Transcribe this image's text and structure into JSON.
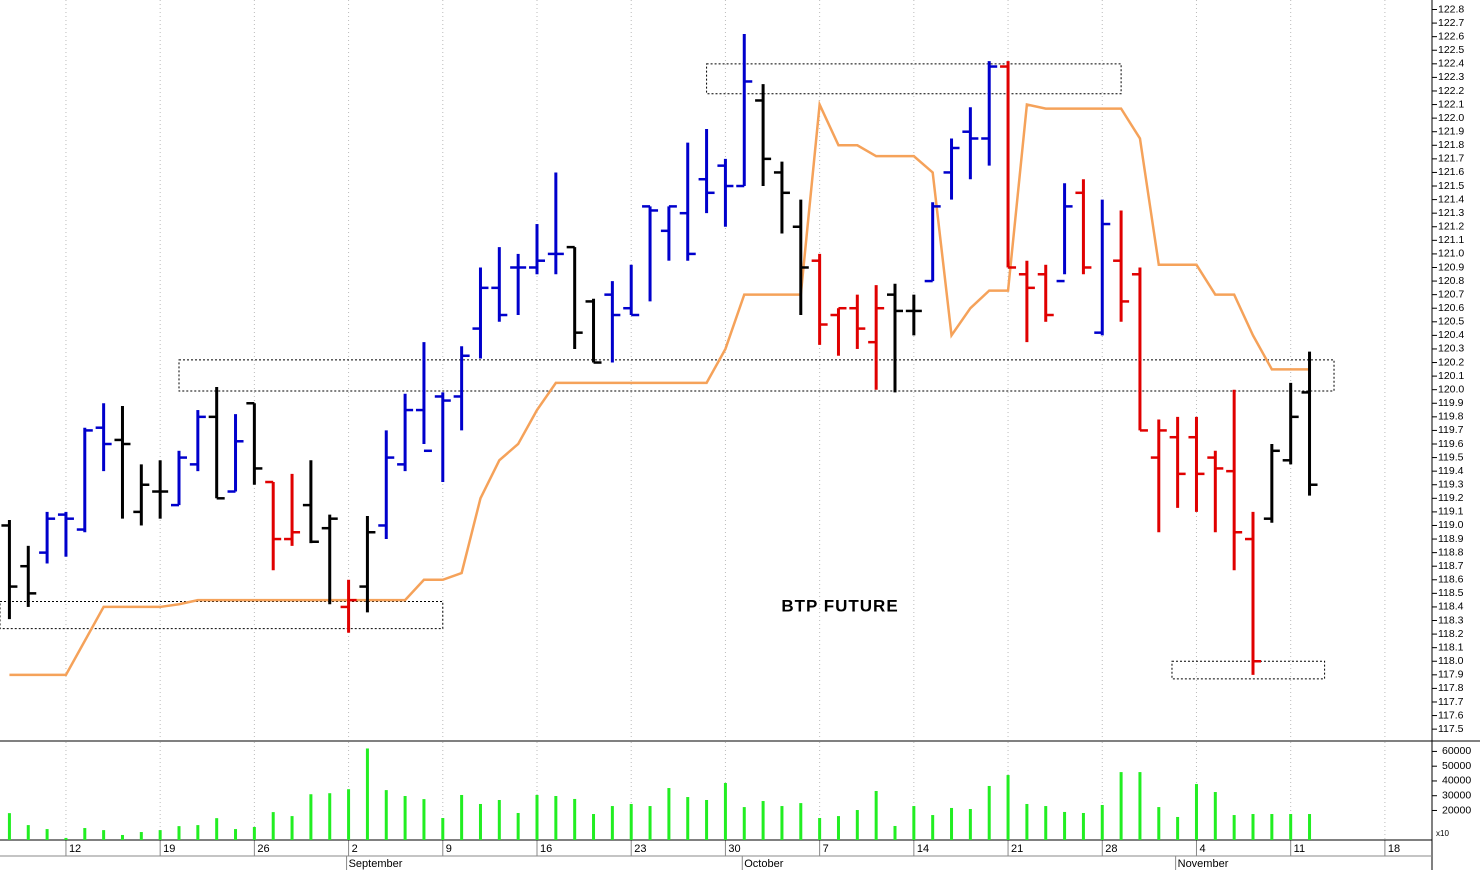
{
  "chart_data": {
    "type": "ohlc",
    "title": "BTP FUTURE",
    "x": [
      0,
      1,
      2,
      3,
      4,
      5,
      6,
      7,
      8,
      9,
      10,
      11,
      12,
      13,
      14,
      15,
      16,
      17,
      18,
      19,
      20,
      21,
      22,
      23,
      24,
      25,
      26,
      27,
      28,
      29,
      30,
      31,
      32,
      33,
      34,
      35,
      36,
      37,
      38,
      39,
      40,
      41,
      42,
      43,
      44,
      45,
      46,
      47,
      48,
      49,
      50,
      51,
      52,
      53,
      54,
      55,
      56,
      57,
      58,
      59,
      60,
      61,
      62,
      63,
      64,
      65,
      66,
      67,
      68,
      69
    ],
    "xlim": [
      -0.5,
      75.5
    ],
    "xticks": [
      {
        "value": 3,
        "label": "12"
      },
      {
        "value": 8,
        "label": "19"
      },
      {
        "value": 13,
        "label": "26"
      },
      {
        "value": 18,
        "label": "2"
      },
      {
        "value": 23,
        "label": "9"
      },
      {
        "value": 28,
        "label": "16"
      },
      {
        "value": 33,
        "label": "23"
      },
      {
        "value": 38,
        "label": "30"
      },
      {
        "value": 43,
        "label": "7"
      },
      {
        "value": 48,
        "label": "14"
      },
      {
        "value": 53,
        "label": "21"
      },
      {
        "value": 58,
        "label": "28"
      },
      {
        "value": 63,
        "label": "4"
      },
      {
        "value": 68,
        "label": "11"
      },
      {
        "value": 73,
        "label": "18"
      }
    ],
    "months": [
      {
        "value": 18,
        "label": "September"
      },
      {
        "value": 39,
        "label": "October"
      },
      {
        "value": 62,
        "label": "November"
      }
    ],
    "open": [
      119.0,
      118.7,
      118.8,
      119.08,
      118.97,
      119.72,
      119.63,
      119.1,
      119.25,
      119.15,
      119.45,
      119.8,
      119.25,
      119.9,
      119.32,
      118.9,
      119.15,
      118.98,
      118.4,
      118.55,
      119.0,
      119.45,
      119.85,
      119.95,
      119.95,
      120.45,
      120.75,
      120.9,
      120.9,
      121.0,
      121.05,
      120.65,
      120.7,
      120.6,
      121.35,
      121.17,
      121.3,
      121.55,
      121.65,
      121.5,
      122.13,
      121.6,
      121.2,
      120.95,
      120.55,
      120.6,
      120.35,
      120.7,
      120.58,
      120.8,
      121.6,
      121.9,
      121.85,
      122.38,
      120.85,
      120.85,
      120.8,
      121.45,
      120.42,
      120.95,
      120.85,
      119.5,
      119.65,
      119.65,
      119.5,
      119.4,
      118.9,
      119.05,
      119.48,
      119.98
    ],
    "high": [
      119.04,
      118.85,
      119.1,
      119.1,
      119.72,
      119.9,
      119.88,
      119.45,
      119.48,
      119.55,
      119.85,
      120.02,
      119.82,
      119.9,
      119.32,
      119.38,
      119.48,
      119.08,
      118.6,
      119.07,
      119.7,
      119.97,
      120.35,
      119.98,
      120.32,
      120.9,
      121.05,
      121.0,
      121.22,
      121.6,
      121.05,
      120.67,
      120.8,
      120.92,
      121.35,
      121.35,
      121.82,
      121.92,
      121.7,
      122.62,
      122.25,
      121.68,
      121.4,
      121.0,
      120.6,
      120.7,
      120.77,
      120.78,
      120.7,
      121.38,
      121.85,
      122.08,
      122.42,
      122.42,
      120.95,
      120.92,
      121.52,
      121.55,
      121.4,
      121.32,
      120.9,
      119.78,
      119.8,
      119.8,
      119.55,
      120.0,
      119.1,
      119.6,
      120.05,
      120.28
    ],
    "low": [
      118.31,
      118.4,
      118.72,
      118.77,
      118.95,
      119.4,
      119.05,
      119.0,
      119.05,
      119.15,
      119.4,
      119.2,
      119.25,
      119.3,
      118.67,
      118.85,
      118.87,
      118.42,
      118.21,
      118.36,
      118.9,
      119.4,
      119.6,
      119.32,
      119.7,
      120.23,
      120.5,
      120.55,
      120.85,
      120.85,
      120.3,
      120.2,
      120.2,
      120.55,
      120.65,
      120.95,
      120.95,
      121.3,
      121.2,
      121.5,
      121.5,
      121.15,
      120.55,
      120.33,
      120.25,
      120.3,
      120.0,
      119.98,
      120.4,
      120.8,
      121.4,
      121.55,
      121.65,
      120.9,
      120.35,
      120.5,
      120.85,
      120.85,
      120.4,
      120.5,
      119.7,
      118.95,
      119.13,
      119.1,
      118.95,
      118.67,
      117.9,
      119.02,
      119.45,
      119.22
    ],
    "close": [
      118.55,
      118.5,
      119.05,
      119.05,
      119.7,
      119.6,
      119.6,
      119.3,
      119.25,
      119.5,
      119.8,
      119.2,
      119.62,
      119.42,
      118.9,
      118.95,
      118.88,
      119.05,
      118.45,
      118.95,
      119.5,
      119.85,
      119.55,
      119.92,
      120.25,
      120.75,
      120.55,
      120.9,
      120.95,
      121.0,
      120.42,
      120.2,
      120.55,
      120.55,
      121.32,
      121.35,
      121.0,
      121.45,
      121.5,
      122.27,
      121.7,
      121.45,
      120.9,
      120.48,
      120.6,
      120.45,
      120.6,
      120.58,
      120.58,
      121.35,
      121.78,
      121.85,
      122.38,
      120.9,
      120.75,
      120.55,
      121.35,
      120.9,
      121.22,
      120.65,
      119.7,
      119.7,
      119.38,
      119.38,
      119.42,
      118.95,
      118.0,
      119.55,
      119.8,
      119.3
    ],
    "bar_colors": [
      "#000000",
      "#000000",
      "#0000cc",
      "#0000cc",
      "#0000cc",
      "#0000cc",
      "#000000",
      "#000000",
      "#000000",
      "#0000cc",
      "#0000cc",
      "#000000",
      "#0000cc",
      "#000000",
      "#e00000",
      "#e00000",
      "#000000",
      "#000000",
      "#e00000",
      "#000000",
      "#0000cc",
      "#0000cc",
      "#0000cc",
      "#0000cc",
      "#0000cc",
      "#0000cc",
      "#0000cc",
      "#0000cc",
      "#0000cc",
      "#0000cc",
      "#000000",
      "#000000",
      "#0000cc",
      "#0000cc",
      "#0000cc",
      "#0000cc",
      "#0000cc",
      "#0000cc",
      "#0000cc",
      "#0000cc",
      "#000000",
      "#000000",
      "#000000",
      "#e00000",
      "#e00000",
      "#e00000",
      "#e00000",
      "#000000",
      "#000000",
      "#0000cc",
      "#0000cc",
      "#0000cc",
      "#0000cc",
      "#e00000",
      "#e00000",
      "#e00000",
      "#0000cc",
      "#e00000",
      "#0000cc",
      "#e00000",
      "#e00000",
      "#e00000",
      "#e00000",
      "#e00000",
      "#e00000",
      "#e00000",
      "#e00000",
      "#000000",
      "#000000",
      "#000000"
    ],
    "stop_line": {
      "color": "#f5a25a",
      "values": [
        117.9,
        117.9,
        117.9,
        117.9,
        118.15,
        118.4,
        118.4,
        118.4,
        118.4,
        118.42,
        118.45,
        118.45,
        118.45,
        118.45,
        118.45,
        118.45,
        118.45,
        118.45,
        118.45,
        118.45,
        118.45,
        118.45,
        118.6,
        118.6,
        118.65,
        119.2,
        119.48,
        119.6,
        119.85,
        120.05,
        120.05,
        120.05,
        120.05,
        120.05,
        120.05,
        120.05,
        120.05,
        120.05,
        120.3,
        120.7,
        120.7,
        120.7,
        120.7,
        122.1,
        121.8,
        121.8,
        121.72,
        121.72,
        121.72,
        121.6,
        120.4,
        120.6,
        120.73,
        120.73,
        122.1,
        122.07,
        122.07,
        122.07,
        122.07,
        122.07,
        121.85,
        120.92,
        120.92,
        120.92,
        120.7,
        120.7,
        120.4,
        120.15,
        120.15,
        120.15
      ]
    },
    "zones": [
      {
        "x": [
          -0.5,
          23
        ],
        "y": [
          118.24,
          118.44
        ]
      },
      {
        "x": [
          9,
          70.3
        ],
        "y": [
          119.99,
          120.22
        ]
      },
      {
        "x": [
          37,
          59
        ],
        "y": [
          122.18,
          122.4
        ]
      },
      {
        "x": [
          61.7,
          69.8
        ],
        "y": [
          117.87,
          118.0
        ]
      }
    ],
    "ylim": [
      117.42,
      122.87
    ],
    "yticks": [
      117.5,
      117.6,
      117.7,
      117.8,
      117.9,
      {
        "value": 118,
        "label": "118.0"
      },
      118.1,
      118.2,
      118.3,
      118.4,
      118.5,
      118.6,
      118.7,
      118.8,
      118.9,
      {
        "value": 119,
        "label": "119.0"
      },
      119.1,
      119.2,
      119.3,
      119.4,
      119.5,
      119.6,
      119.7,
      119.8,
      119.9,
      {
        "value": 120,
        "label": "120.0"
      },
      120.1,
      120.2,
      120.3,
      120.4,
      120.5,
      120.6,
      120.7,
      120.8,
      120.9,
      {
        "value": 121,
        "label": "121.0"
      },
      121.1,
      121.2,
      121.3,
      121.4,
      121.5,
      121.6,
      121.7,
      121.8,
      121.9,
      {
        "value": 122,
        "label": "122.0"
      },
      122.1,
      122.2,
      122.3,
      122.4,
      122.5,
      122.6,
      122.7,
      122.8
    ],
    "volume": {
      "color": "#22ee22",
      "multiplier": "x10",
      "ylim": [
        0,
        63000
      ],
      "yticks": [
        20000,
        30000,
        40000,
        50000,
        60000
      ],
      "values": [
        18200,
        10100,
        7400,
        1400,
        8100,
        6700,
        3400,
        5400,
        6700,
        9400,
        10100,
        14800,
        7400,
        8800,
        18900,
        16200,
        31000,
        31700,
        34400,
        62000,
        33800,
        29800,
        27700,
        14900,
        30500,
        24400,
        27100,
        18300,
        30500,
        29800,
        27800,
        17600,
        23000,
        24400,
        23000,
        35200,
        29100,
        27100,
        38600,
        22300,
        26400,
        23000,
        25000,
        14900,
        16200,
        20300,
        33200,
        9500,
        23000,
        16900,
        21700,
        21000,
        36600,
        44000,
        24400,
        23000,
        19000,
        18300,
        23700,
        46000,
        46000,
        22300,
        15600,
        37900,
        32500,
        16900,
        17600,
        17600,
        17600,
        17600
      ]
    },
    "grid": true
  }
}
